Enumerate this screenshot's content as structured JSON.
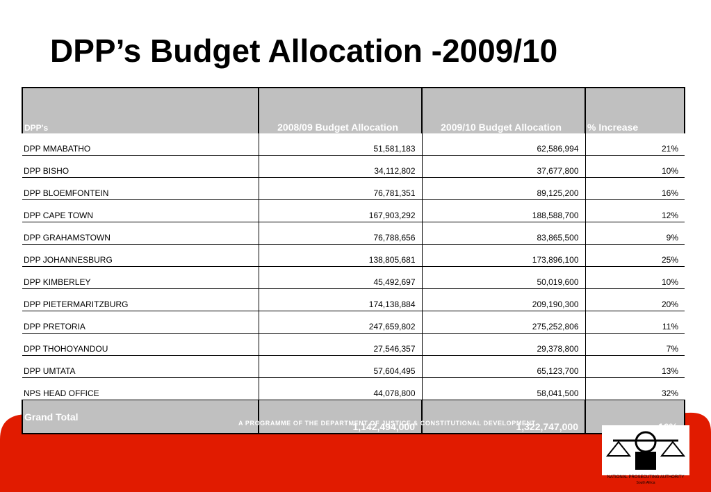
{
  "header": {
    "title": "DPP’s Budget Allocation -2009/10"
  },
  "table": {
    "columns": [
      "DPP's",
      "2008/09 Budget Allocation",
      "2009/10 Budget Allocation",
      "% Increase"
    ],
    "rows": [
      [
        "DPP  MMABATHO",
        "51,581,183",
        "62,586,994",
        "21%"
      ],
      [
        "DPP BISHO",
        "34,112,802",
        "37,677,800",
        "10%"
      ],
      [
        "DPP BLOEMFONTEIN",
        "76,781,351",
        "89,125,200",
        "16%"
      ],
      [
        "DPP CAPE TOWN",
        "167,903,292",
        "188,588,700",
        "12%"
      ],
      [
        "DPP GRAHAMSTOWN",
        "76,788,656",
        "83,865,500",
        "9%"
      ],
      [
        "DPP JOHANNESBURG",
        "138,805,681",
        "173,896,100",
        "25%"
      ],
      [
        "DPP KIMBERLEY",
        "45,492,697",
        "50,019,600",
        "10%"
      ],
      [
        "DPP PIETERMARITZBURG",
        "174,138,884",
        "209,190,300",
        "20%"
      ],
      [
        "DPP PRETORIA",
        "247,659,802",
        "275,252,806",
        "11%"
      ],
      [
        "DPP THOHOYANDOU",
        "27,546,357",
        "29,378,800",
        "7%"
      ],
      [
        "DPP UMTATA",
        "57,604,495",
        "65,123,700",
        "13%"
      ],
      [
        "NPS HEAD OFFICE",
        "44,078,800",
        "58,041,500",
        "32%"
      ]
    ],
    "total": [
      "Grand Total",
      "1,142,494,000",
      "1,322,747,000",
      "16%"
    ]
  },
  "footer": {
    "text": "A PROGRAMME OF THE DEPARTMENT OF JUSTICE & CONSTITUTIONAL DEVELOPMENT",
    "logo_text": "NATIONAL PROSECUTING AUTHORITY",
    "logo_subtext": "South Africa"
  }
}
